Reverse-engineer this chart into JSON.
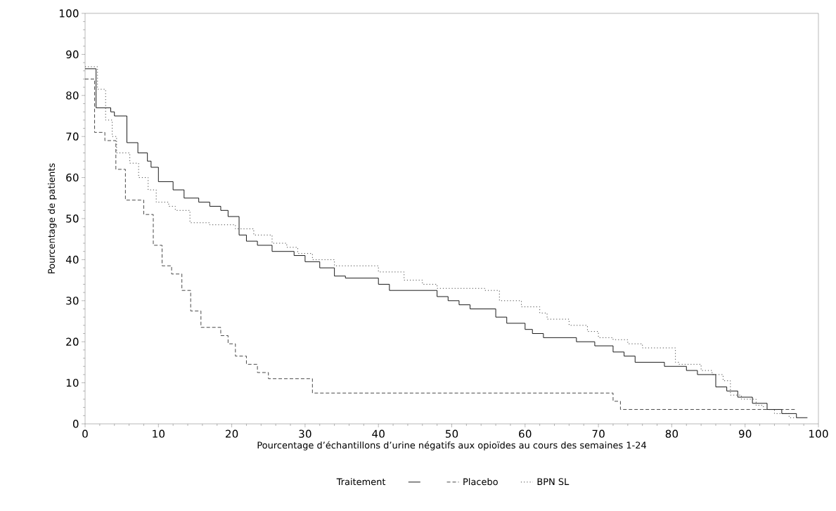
{
  "chart_data": {
    "type": "step",
    "xlabel": "Pourcentage d’échantillons d’urine négatifs aux opioïdes au cours des semaines 1-24",
    "ylabel": "Pourcentage de patients",
    "legend_title": "Traitement",
    "legend": "bottom",
    "grid": false,
    "xlim": [
      0,
      100
    ],
    "ylim": [
      0,
      100
    ],
    "xticks": [
      0,
      10,
      20,
      30,
      40,
      50,
      60,
      70,
      80,
      90,
      100
    ],
    "yticks": [
      0,
      10,
      20,
      30,
      40,
      50,
      60,
      70,
      80,
      90,
      100
    ],
    "series": [
      {
        "color": "#000000",
        "line_style": "solid",
        "x": [
          0,
          1.5,
          3.5,
          4,
          5.7,
          7.2,
          8.5,
          9,
          10,
          12,
          13.5,
          15.5,
          17,
          18.5,
          19.5,
          21,
          22,
          23.5,
          25.5,
          28.5,
          30,
          32,
          34,
          35.5,
          40,
          41.5,
          48,
          49.5,
          51,
          52.5,
          56,
          57.5,
          60,
          61,
          62.5,
          67,
          69.5,
          72,
          73.5,
          75,
          79,
          82,
          83.5,
          86,
          87.5,
          89,
          91,
          93,
          95,
          97,
          98.5
        ],
        "values": [
          86.5,
          77,
          76,
          75,
          68.5,
          66,
          64,
          62.5,
          59,
          57,
          55,
          54,
          53,
          52,
          50.5,
          46,
          44.5,
          43.5,
          42,
          41,
          39.5,
          38,
          36,
          35.5,
          34,
          32.5,
          31,
          30,
          29,
          28,
          26,
          24.5,
          23,
          22,
          21,
          20,
          19,
          17.5,
          16.5,
          15,
          14,
          13,
          12,
          9,
          8,
          6.5,
          5,
          3.5,
          2.5,
          1.5,
          1.5
        ]
      },
      {
        "name": "Placebo",
        "color": "#333333",
        "line_style": "dashed",
        "x": [
          0,
          1.3,
          2.7,
          4.2,
          5.5,
          8,
          9.3,
          10.5,
          11.8,
          13.2,
          14.4,
          15.8,
          18.5,
          19.5,
          20.5,
          22,
          23.5,
          25,
          31,
          72,
          73,
          97
        ],
        "values": [
          84,
          71,
          69,
          62,
          54.5,
          51,
          43.5,
          38.5,
          36.5,
          32.5,
          27.5,
          23.5,
          21.5,
          19.5,
          16.5,
          14.5,
          12.5,
          11,
          7.5,
          5.5,
          3.5,
          3.5
        ]
      },
      {
        "name": "BPN SL",
        "color": "#333333",
        "line_style": "dotted",
        "x": [
          0,
          1.7,
          2.8,
          3.7,
          4.3,
          6.1,
          7.3,
          8.6,
          9.7,
          11.4,
          12.3,
          14.3,
          17,
          20.5,
          23,
          25.5,
          27.5,
          29,
          31,
          34,
          40,
          43.5,
          46,
          48,
          54.5,
          56.5,
          59.5,
          62,
          63,
          66,
          68.5,
          70,
          72,
          74,
          76,
          80.5,
          81,
          84,
          85.5,
          87,
          88,
          89.5,
          91.5,
          92.5,
          94,
          96,
          97
        ],
        "values": [
          87,
          81.5,
          74,
          70,
          66,
          63.5,
          60,
          57,
          54,
          53,
          52,
          49,
          48.5,
          47.5,
          46,
          44,
          43,
          41.5,
          40,
          38.5,
          37,
          35,
          34,
          33,
          32.5,
          30,
          28.5,
          27,
          25.5,
          24,
          22.5,
          21,
          20.5,
          19.5,
          18.5,
          15,
          14.5,
          13,
          12,
          10.5,
          7,
          6,
          4.5,
          3.5,
          2.5,
          1.5,
          1.5
        ]
      }
    ]
  }
}
